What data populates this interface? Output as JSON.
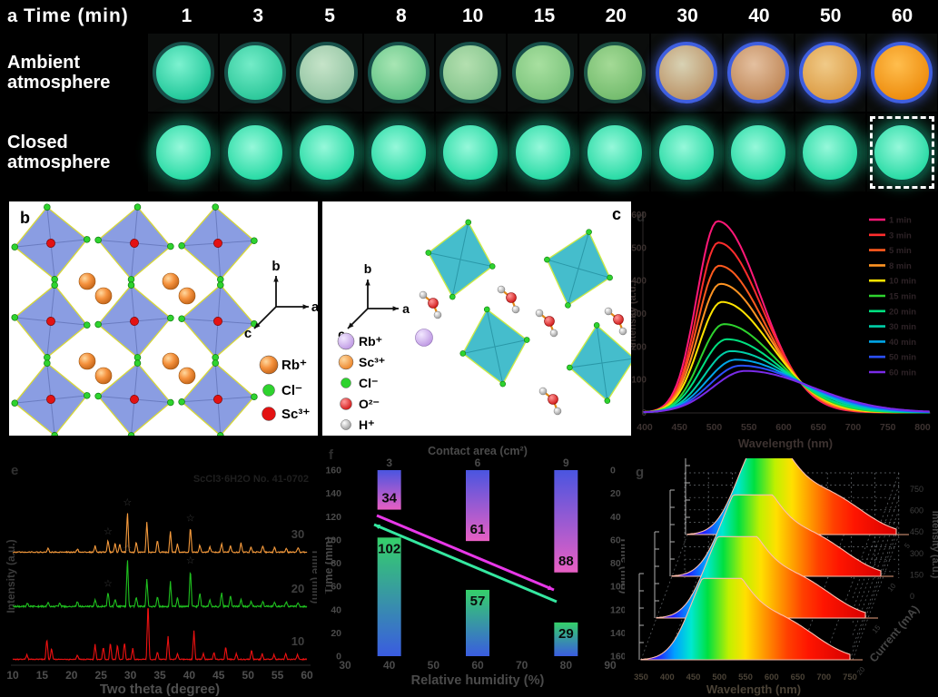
{
  "figure": {
    "panel_a": {
      "letter": "a",
      "time_label": "Time  (min)",
      "times": [
        "1",
        "3",
        "5",
        "8",
        "10",
        "15",
        "20",
        "30",
        "40",
        "50",
        "60"
      ],
      "row1_label": "Ambient atmosphere",
      "row2_label": "Closed atmosphere",
      "ambient_samples": [
        {
          "c1": "#7df2d0",
          "c2": "#21c89a",
          "ring": "#17504a",
          "glow": false
        },
        {
          "c1": "#74ecc8",
          "c2": "#2cc89a",
          "ring": "#17504a",
          "glow": false
        },
        {
          "c1": "#c6e4c9",
          "c2": "#92c4a2",
          "ring": "#17504a",
          "glow": false
        },
        {
          "c1": "#a8e6b4",
          "c2": "#62c486",
          "ring": "#17504a",
          "glow": false
        },
        {
          "c1": "#b4e0b0",
          "c2": "#84c48c",
          "ring": "#17504a",
          "glow": false
        },
        {
          "c1": "#a8e0a0",
          "c2": "#7cc47c",
          "ring": "#17504a",
          "glow": false
        },
        {
          "c1": "#a4da96",
          "c2": "#74bc6e",
          "ring": "#1d5648",
          "glow": false
        },
        {
          "c1": "#d8d2b4",
          "c2": "#bc9468",
          "ring": "#3f5fe0",
          "glow": true
        },
        {
          "c1": "#e4c0a0",
          "c2": "#c08858",
          "ring": "#3f5fe0",
          "glow": true
        },
        {
          "c1": "#f0ca88",
          "c2": "#dc9c44",
          "ring": "#3f5fe0",
          "glow": true
        },
        {
          "c1": "#ffbe4e",
          "c2": "#ee8d0e",
          "ring": "#3f5fe0",
          "glow": true
        }
      ],
      "closed_sample": {
        "c1": "#96f8da",
        "c2": "#1ed8a0",
        "ring": "#0d4a3c"
      }
    },
    "panel_b": {
      "letter": "b",
      "axis_labels": {
        "up": "b",
        "right": "a",
        "diag": "c"
      },
      "legend": [
        {
          "label": "Rb⁺",
          "color": "#f5923e",
          "r": 10
        },
        {
          "label": "Cl⁻",
          "color": "#2ed32e",
          "r": 6.5
        },
        {
          "label": "Sc³⁺",
          "color": "#e31212",
          "r": 7.5
        }
      ]
    },
    "panel_c": {
      "letter": "c",
      "axis_labels": {
        "up": "b",
        "right": "a",
        "diag": "c"
      },
      "legend": [
        {
          "label": "Rb⁺",
          "color": "#cdb0ea",
          "r": 9
        },
        {
          "label": "Sc³⁺",
          "color": "#f08020",
          "r": 8
        },
        {
          "label": "Cl⁻",
          "color": "#2ed32e",
          "r": 5.5
        },
        {
          "label": "O²⁻",
          "color": "#e31212",
          "r": 6.5
        },
        {
          "label": "H⁺",
          "color": "#b8b8b8",
          "r": 5.5
        }
      ]
    },
    "panel_d": {
      "letter": "d"
    },
    "panel_e": {
      "letter": "e"
    },
    "panel_f": {
      "letter": "f"
    },
    "panel_g": {
      "letter": "g"
    }
  },
  "chart_data": [
    {
      "id": "d",
      "type": "line",
      "xlabel": "Wavelength (nm)",
      "ylabel": "Intensity (a.u.)",
      "xlim": [
        400,
        800
      ],
      "ylim": [
        0,
        600
      ],
      "xticks": [
        400,
        450,
        500,
        550,
        600,
        650,
        700,
        750,
        800
      ],
      "yticks": [
        0,
        100,
        200,
        300,
        400,
        500,
        600
      ],
      "legend_position": "right",
      "series": [
        {
          "name": "1 min",
          "color": "#ff1877",
          "peak": 580,
          "peak_nm": 505,
          "sl": 30,
          "sr": 62
        },
        {
          "name": "3 min",
          "color": "#ff2d2d",
          "peak": 515,
          "peak_nm": 506,
          "sl": 30,
          "sr": 64
        },
        {
          "name": "5 min",
          "color": "#ff5a1e",
          "peak": 445,
          "peak_nm": 507,
          "sl": 31,
          "sr": 66
        },
        {
          "name": "8 min",
          "color": "#ff9422",
          "peak": 390,
          "peak_nm": 509,
          "sl": 32,
          "sr": 68
        },
        {
          "name": "10 min",
          "color": "#ffe400",
          "peak": 335,
          "peak_nm": 511,
          "sl": 33,
          "sr": 71
        },
        {
          "name": "15 min",
          "color": "#2ed32e",
          "peak": 268,
          "peak_nm": 514,
          "sl": 34,
          "sr": 75
        },
        {
          "name": "20 min",
          "color": "#00e07f",
          "peak": 222,
          "peak_nm": 518,
          "sl": 36,
          "sr": 79
        },
        {
          "name": "30 min",
          "color": "#00cfa8",
          "peak": 186,
          "peak_nm": 524,
          "sl": 38,
          "sr": 84
        },
        {
          "name": "40 min",
          "color": "#00a6e8",
          "peak": 160,
          "peak_nm": 531,
          "sl": 41,
          "sr": 88
        },
        {
          "name": "50 min",
          "color": "#2b50ff",
          "peak": 142,
          "peak_nm": 538,
          "sl": 44,
          "sr": 92
        },
        {
          "name": "60 min",
          "color": "#7a2be8",
          "peak": 126,
          "peak_nm": 545,
          "sl": 47,
          "sr": 96
        }
      ]
    },
    {
      "id": "e",
      "type": "xrd",
      "xlabel": "Two theta (degree)",
      "ylabel": "Intensity (a.u.)",
      "right_label": "Time (min)",
      "annotation": "ScCl3·6H2O No. 41-0702",
      "xticks": [
        10,
        15,
        20,
        25,
        30,
        35,
        40,
        45,
        50,
        55,
        60
      ],
      "traces": [
        {
          "name": "30",
          "color": "#f59a3c",
          "scale": 46,
          "noise": 1.2,
          "stars": [
            26.2,
            29.5,
            40.2
          ],
          "peaks": [
            [
              16,
              0.1
            ],
            [
              21,
              0.08
            ],
            [
              24,
              0.15
            ],
            [
              26.2,
              0.3
            ],
            [
              27.4,
              0.22
            ],
            [
              28.2,
              0.2
            ],
            [
              29.5,
              1.0
            ],
            [
              31,
              0.25
            ],
            [
              32.8,
              0.72
            ],
            [
              34.6,
              0.3
            ],
            [
              36.8,
              0.5
            ],
            [
              38,
              0.2
            ],
            [
              40.2,
              0.62
            ],
            [
              41.8,
              0.18
            ],
            [
              43.5,
              0.14
            ],
            [
              45.5,
              0.22
            ],
            [
              47,
              0.16
            ],
            [
              48.8,
              0.24
            ],
            [
              50.5,
              0.14
            ],
            [
              52.5,
              0.16
            ],
            [
              54.5,
              0.12
            ],
            [
              56.5,
              0.1
            ],
            [
              58.5,
              0.12
            ]
          ]
        },
        {
          "name": "20",
          "color": "#1fbf1f",
          "scale": 55,
          "noise": 1.6,
          "stars": [
            26.2,
            29.5,
            40.2
          ],
          "peaks": [
            [
              12.5,
              0.07
            ],
            [
              16,
              0.09
            ],
            [
              18,
              0.07
            ],
            [
              21,
              0.11
            ],
            [
              24,
              0.14
            ],
            [
              26.2,
              0.3
            ],
            [
              27.4,
              0.16
            ],
            [
              29.5,
              1.0
            ],
            [
              31,
              0.2
            ],
            [
              32.8,
              0.55
            ],
            [
              34.6,
              0.2
            ],
            [
              36.8,
              0.5
            ],
            [
              38,
              0.18
            ],
            [
              40.2,
              0.76
            ],
            [
              41.8,
              0.28
            ],
            [
              43.5,
              0.14
            ],
            [
              45.5,
              0.3
            ],
            [
              47,
              0.24
            ],
            [
              48.8,
              0.14
            ],
            [
              50.5,
              0.1
            ],
            [
              52.5,
              0.12
            ],
            [
              54.5,
              0.08
            ],
            [
              56.5,
              0.1
            ],
            [
              58.5,
              0.07
            ]
          ]
        },
        {
          "name": "10",
          "color": "#ee1111",
          "scale": 64,
          "noise": 1.0,
          "stars": [],
          "peaks": [
            [
              12.4,
              0.08
            ],
            [
              15.8,
              0.36
            ],
            [
              16.6,
              0.2
            ],
            [
              21,
              0.08
            ],
            [
              24,
              0.26
            ],
            [
              25.4,
              0.22
            ],
            [
              26.6,
              0.3
            ],
            [
              27.8,
              0.26
            ],
            [
              29,
              0.3
            ],
            [
              30.4,
              0.2
            ],
            [
              33,
              1.0
            ],
            [
              34.6,
              0.14
            ],
            [
              36.4,
              0.4
            ],
            [
              38,
              0.1
            ],
            [
              40.8,
              0.5
            ],
            [
              42.4,
              0.1
            ],
            [
              44.2,
              0.12
            ],
            [
              46.2,
              0.22
            ],
            [
              48,
              0.1
            ],
            [
              50.6,
              0.16
            ],
            [
              52.4,
              0.1
            ],
            [
              54.4,
              0.08
            ],
            [
              56.4,
              0.1
            ],
            [
              58.4,
              0.08
            ]
          ]
        }
      ]
    },
    {
      "id": "f",
      "type": "bar",
      "top_axis": {
        "label": "Contact area (cm²)",
        "ticks": [
          "3",
          "6",
          "9"
        ]
      },
      "bottom_axis": {
        "label": "Relative humidity (%)",
        "ticks": [
          30,
          40,
          50,
          60,
          70,
          80,
          90
        ]
      },
      "left_axis": {
        "label": "Time (min)",
        "ticks": [
          0,
          20,
          40,
          60,
          80,
          100,
          120,
          140,
          160
        ]
      },
      "right_axis": {
        "label": "Time (min)",
        "ticks": [
          0,
          20,
          40,
          60,
          80,
          100,
          120,
          140,
          160
        ]
      },
      "bar_x_humidity": [
        40,
        60,
        80
      ],
      "top_bars": {
        "values": [
          34,
          61,
          88
        ],
        "grad": [
          "#4a55e0",
          "#e85fc4"
        ]
      },
      "bottom_bars": {
        "values": [
          102,
          57,
          29
        ],
        "grad": [
          "#35d06a",
          "#3a5ce0"
        ]
      },
      "arrow_colors": {
        "down": "#e838e8",
        "up": "#35e8a0"
      }
    },
    {
      "id": "g",
      "type": "waterfall3d",
      "xlabel": "Wavelength (nm)",
      "xticks": [
        350,
        400,
        450,
        500,
        550,
        600,
        650,
        700,
        750
      ],
      "zlabel": "Intensity (a.u.)",
      "zticks": [
        0,
        150,
        300,
        450,
        600,
        750
      ],
      "depth_label": "Current (mA)",
      "depth_ticks": [
        "20",
        "15",
        "10",
        "5"
      ],
      "n_curves": 4
    }
  ]
}
